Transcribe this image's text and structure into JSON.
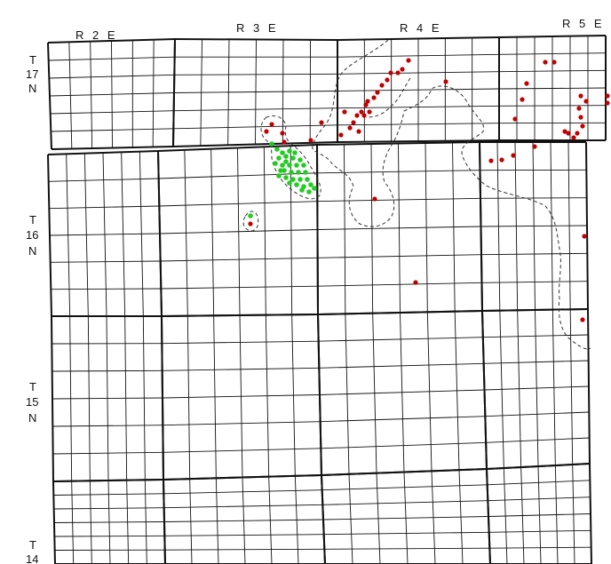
{
  "map": {
    "range_labels": [
      "R 2 E",
      "R 3 E",
      "R 4 E",
      "R 5 E"
    ],
    "township_labels": [
      {
        "t": "T",
        "num": "17",
        "dir": "N"
      },
      {
        "t": "T",
        "num": "16",
        "dir": "N"
      },
      {
        "t": "T",
        "num": "15",
        "dir": "N"
      },
      {
        "t": "T",
        "num": "14",
        "dir": ""
      }
    ],
    "colors": {
      "grid": "#111111",
      "red_points": "#c00000",
      "green_points": "#22cc22",
      "boundary": "#333333"
    }
  }
}
